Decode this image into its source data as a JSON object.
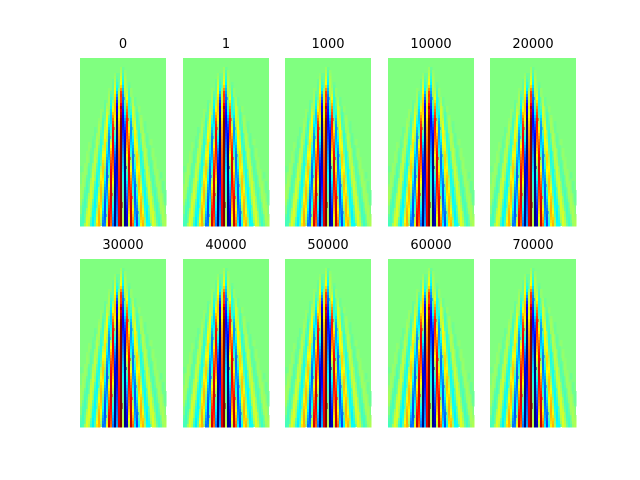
{
  "chart_data": {
    "type": "heatmap",
    "layout": {
      "rows": 2,
      "cols": 5
    },
    "colormap": "jet",
    "background_color": "#80ff80",
    "panels": [
      {
        "title": "0"
      },
      {
        "title": "1"
      },
      {
        "title": "1000"
      },
      {
        "title": "10000"
      },
      {
        "title": "20000"
      },
      {
        "title": "30000"
      },
      {
        "title": "40000"
      },
      {
        "title": "50000"
      },
      {
        "title": "60000"
      },
      {
        "title": "70000"
      }
    ],
    "axes_visible": false
  }
}
